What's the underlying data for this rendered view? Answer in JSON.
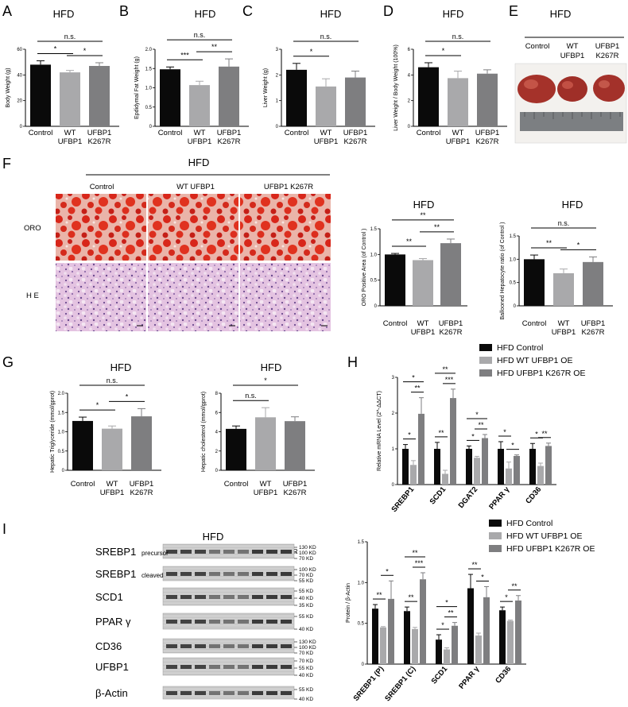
{
  "panel_labels": {
    "A": "A",
    "B": "B",
    "C": "C",
    "D": "D",
    "E": "E",
    "F": "F",
    "G": "G",
    "H": "H",
    "I": "I"
  },
  "condition_label": "HFD",
  "colors": {
    "control": "#0a0a0a",
    "wt": "#a9a9ab",
    "k267r": "#7e7e80",
    "oro": "#d72a1e",
    "oro_bg": "#e9b6ae",
    "he": "#d6a2cf",
    "he_dark": "#7d5a9a"
  },
  "groups": [
    "Control",
    "WT\nUFBP1",
    "UFBP1\nK267R"
  ],
  "legend": [
    "HFD  Control",
    "HFD  WT UFBP1 OE",
    "HFD  UFBP1 K267R OE"
  ],
  "panel_E": {
    "labels": [
      "Control",
      "WT\nUFBP1",
      "UFBP1\nK267R"
    ]
  },
  "panel_F_images": {
    "columns": [
      "Control",
      "WT   UFBP1",
      "UFBP1   K267R"
    ],
    "rows": [
      "ORO",
      "H E"
    ]
  },
  "panel_I_blot": {
    "groups": [
      "Control",
      "WT UFBP1",
      "UFBP1 K267R"
    ],
    "rows": [
      {
        "name": "SREBP1",
        "sub": "precursor",
        "mw": [
          "130 KD",
          "100 KD",
          "70 KD"
        ]
      },
      {
        "name": "SREBP1",
        "sub": "cleaved",
        "mw": [
          "100 KD",
          "70 KD",
          "55 KD"
        ]
      },
      {
        "name": "SCD1",
        "sub": "",
        "mw": [
          "55 KD",
          "40 KD",
          "35 KD"
        ]
      },
      {
        "name": "PPAR γ",
        "sub": "",
        "mw": [
          "55 KD",
          "40 KD"
        ]
      },
      {
        "name": "CD36",
        "sub": "",
        "mw": [
          "130 KD",
          "100 KD",
          "70 KD"
        ]
      },
      {
        "name": "UFBP1",
        "sub": "",
        "mw": [
          "70 KD",
          "55 KD",
          "40 KD"
        ]
      },
      {
        "name": "β-Actin",
        "sub": "",
        "mw": [
          "55 KD",
          "40 KD"
        ]
      }
    ]
  },
  "chart_data": [
    {
      "id": "A",
      "type": "bar",
      "title": "HFD",
      "ylabel": "Body Weight (g)",
      "ylim": [
        0,
        60
      ],
      "yticks": [
        0,
        20,
        40,
        60
      ],
      "categories": [
        "Control",
        "WT UFBP1",
        "UFBP1 K267R"
      ],
      "values": [
        48,
        42,
        47
      ],
      "errors": [
        3,
        1.5,
        2.5
      ],
      "significance": [
        {
          "from": 0,
          "to": 1,
          "label": "*"
        },
        {
          "from": 1,
          "to": 2,
          "label": "*"
        },
        {
          "from": 0,
          "to": 2,
          "label": "n.s."
        }
      ]
    },
    {
      "id": "B",
      "type": "bar",
      "title": "HFD",
      "ylabel": "Epdidymal Fat Weight (g)",
      "ylim": [
        0,
        2.0
      ],
      "yticks": [
        0,
        0.5,
        1.0,
        1.5,
        2.0
      ],
      "categories": [
        "Control",
        "WT UFBP1",
        "UFBP1 K267R"
      ],
      "values": [
        1.48,
        1.07,
        1.55
      ],
      "errors": [
        0.06,
        0.1,
        0.2
      ],
      "significance": [
        {
          "from": 0,
          "to": 1,
          "label": "***"
        },
        {
          "from": 1,
          "to": 2,
          "label": "**"
        },
        {
          "from": 0,
          "to": 2,
          "label": "n.s."
        }
      ]
    },
    {
      "id": "C",
      "type": "bar",
      "title": "HFD",
      "ylabel": "Liver Weight (g)",
      "ylim": [
        0,
        3
      ],
      "yticks": [
        0,
        1,
        2,
        3
      ],
      "categories": [
        "Control",
        "WT UFBP1",
        "UFBP1 K267R"
      ],
      "values": [
        2.2,
        1.55,
        1.9
      ],
      "errors": [
        0.25,
        0.3,
        0.25
      ],
      "significance": [
        {
          "from": 0,
          "to": 1,
          "label": "*"
        },
        {
          "from": 0,
          "to": 2,
          "label": "n.s."
        }
      ]
    },
    {
      "id": "D",
      "type": "bar",
      "title": "HFD",
      "ylabel": "Liver Weight / Body Weight (100%)",
      "ylim": [
        0,
        6
      ],
      "yticks": [
        0,
        2,
        4,
        6
      ],
      "categories": [
        "Control",
        "WT UFBP1",
        "UFBP1 K267R"
      ],
      "values": [
        4.6,
        3.75,
        4.1
      ],
      "errors": [
        0.35,
        0.55,
        0.3
      ],
      "significance": [
        {
          "from": 0,
          "to": 1,
          "label": "*"
        },
        {
          "from": 0,
          "to": 2,
          "label": "n.s."
        }
      ]
    },
    {
      "id": "F1",
      "type": "bar",
      "title": "HFD",
      "ylabel": "ORO Positive Area (of Control )",
      "ylim": [
        0,
        1.5
      ],
      "yticks": [
        0,
        0.5,
        1.0,
        1.5
      ],
      "categories": [
        "Control",
        "WT UFBP1",
        "UFBP1 K267R"
      ],
      "values": [
        1.0,
        0.89,
        1.22
      ],
      "errors": [
        0.02,
        0.03,
        0.08
      ],
      "significance": [
        {
          "from": 0,
          "to": 1,
          "label": "**"
        },
        {
          "from": 1,
          "to": 2,
          "label": "**"
        },
        {
          "from": 0,
          "to": 2,
          "label": "**"
        }
      ]
    },
    {
      "id": "F2",
      "type": "bar",
      "title": "HFD",
      "ylabel": "Ballooned Hepatocyte ratio (of Control )",
      "ylim": [
        0,
        1.5
      ],
      "yticks": [
        0,
        0.5,
        1.0,
        1.5
      ],
      "categories": [
        "Control",
        "WT UFBP1",
        "UFBP1 K267R"
      ],
      "values": [
        1.0,
        0.7,
        0.94
      ],
      "errors": [
        0.09,
        0.09,
        0.11
      ],
      "significance": [
        {
          "from": 0,
          "to": 1,
          "label": "**"
        },
        {
          "from": 1,
          "to": 2,
          "label": "*"
        },
        {
          "from": 0,
          "to": 2,
          "label": "n.s."
        }
      ]
    },
    {
      "id": "G1",
      "type": "bar",
      "title": "HFD",
      "ylabel": "Hepatic Triglyceride (mmol/gprot)",
      "ylim": [
        0,
        2.0
      ],
      "yticks": [
        0,
        0.5,
        1.0,
        1.5,
        2.0
      ],
      "categories": [
        "Control",
        "WT UFBP1",
        "UFBP1 K267R"
      ],
      "values": [
        1.28,
        1.08,
        1.4
      ],
      "errors": [
        0.1,
        0.07,
        0.2
      ],
      "significance": [
        {
          "from": 0,
          "to": 1,
          "label": "*"
        },
        {
          "from": 1,
          "to": 2,
          "label": "*"
        },
        {
          "from": 0,
          "to": 2,
          "label": "n.s."
        }
      ]
    },
    {
      "id": "G2",
      "type": "bar",
      "title": "HFD",
      "ylabel": "Hepatic cholesterol (mmol/gprot)",
      "ylim": [
        0,
        8
      ],
      "yticks": [
        0,
        2,
        4,
        6,
        8
      ],
      "categories": [
        "Control",
        "WT UFBP1",
        "UFBP1 K267R"
      ],
      "values": [
        4.3,
        5.5,
        5.1
      ],
      "errors": [
        0.3,
        1.0,
        0.45
      ],
      "significance": [
        {
          "from": 0,
          "to": 1,
          "label": "n.s."
        },
        {
          "from": 0,
          "to": 2,
          "label": "*"
        }
      ]
    },
    {
      "id": "H",
      "type": "bar",
      "title": "",
      "ylabel": "Relative mRNA Level (2^-ΔΔCT)",
      "ylim": [
        0,
        3
      ],
      "yticks": [
        0,
        1,
        2,
        3
      ],
      "categories": [
        "SREBP1",
        "SCD1",
        "DGAT2",
        "PPAR γ",
        "CD36"
      ],
      "series": [
        {
          "name": "HFD  Control",
          "values": [
            1.0,
            1.0,
            1.0,
            1.0,
            1.0
          ],
          "errors": [
            0.12,
            0.18,
            0.08,
            0.2,
            0.15
          ]
        },
        {
          "name": "HFD  WT UFBP1 OE",
          "values": [
            0.55,
            0.3,
            0.75,
            0.45,
            0.52
          ],
          "errors": [
            0.12,
            0.1,
            0.04,
            0.18,
            0.08
          ]
        },
        {
          "name": "HFD  UFBP1 K267R OE",
          "values": [
            1.98,
            2.42,
            1.3,
            0.8,
            1.08
          ],
          "errors": [
            0.45,
            0.25,
            0.1,
            0.03,
            0.08
          ]
        }
      ],
      "significance": [
        {
          "cat": 0,
          "pairs": [
            {
              "from": 0,
              "to": 1,
              "label": "*"
            },
            {
              "from": 1,
              "to": 2,
              "label": "**"
            },
            {
              "from": 0,
              "to": 2,
              "label": "*"
            }
          ]
        },
        {
          "cat": 1,
          "pairs": [
            {
              "from": 0,
              "to": 1,
              "label": "**"
            },
            {
              "from": 1,
              "to": 2,
              "label": "***"
            },
            {
              "from": 0,
              "to": 2,
              "label": "**"
            }
          ]
        },
        {
          "cat": 2,
          "pairs": [
            {
              "from": 0,
              "to": 1,
              "label": "*"
            },
            {
              "from": 1,
              "to": 2,
              "label": "**"
            },
            {
              "from": 0,
              "to": 2,
              "label": "*"
            }
          ]
        },
        {
          "cat": 3,
          "pairs": [
            {
              "from": 0,
              "to": 1,
              "label": "*"
            },
            {
              "from": 1,
              "to": 2,
              "label": "*"
            }
          ]
        },
        {
          "cat": 4,
          "pairs": [
            {
              "from": 0,
              "to": 1,
              "label": "*"
            },
            {
              "from": 1,
              "to": 2,
              "label": "**"
            }
          ]
        }
      ]
    },
    {
      "id": "I",
      "type": "bar",
      "title": "",
      "ylabel": "Protein / β-Actin",
      "ylim": [
        0,
        1.5
      ],
      "yticks": [
        0,
        0.5,
        1.0,
        1.5
      ],
      "categories": [
        "SREBP1 (P)",
        "SREBP1 (C)",
        "SCD1",
        "PPAR γ",
        "CD36"
      ],
      "series": [
        {
          "name": "HFD  Control",
          "values": [
            0.68,
            0.65,
            0.3,
            0.93,
            0.66
          ],
          "errors": [
            0.05,
            0.05,
            0.06,
            0.17,
            0.04
          ]
        },
        {
          "name": "HFD  WT UFBP1 OE",
          "values": [
            0.45,
            0.43,
            0.18,
            0.35,
            0.53
          ],
          "errors": [
            0.01,
            0.02,
            0.02,
            0.03,
            0.01
          ]
        },
        {
          "name": "HFD  UFBP1 K267R OE",
          "values": [
            0.8,
            1.04,
            0.47,
            0.82,
            0.78
          ],
          "errors": [
            0.22,
            0.08,
            0.04,
            0.13,
            0.06
          ]
        }
      ],
      "significance": [
        {
          "cat": 0,
          "pairs": [
            {
              "from": 0,
              "to": 1,
              "label": "**"
            },
            {
              "from": 1,
              "to": 2,
              "label": "*"
            }
          ]
        },
        {
          "cat": 1,
          "pairs": [
            {
              "from": 0,
              "to": 1,
              "label": "**"
            },
            {
              "from": 1,
              "to": 2,
              "label": "***"
            },
            {
              "from": 0,
              "to": 2,
              "label": "**"
            }
          ]
        },
        {
          "cat": 2,
          "pairs": [
            {
              "from": 0,
              "to": 1,
              "label": "*"
            },
            {
              "from": 1,
              "to": 2,
              "label": "**"
            },
            {
              "from": 0,
              "to": 2,
              "label": "*"
            }
          ]
        },
        {
          "cat": 3,
          "pairs": [
            {
              "from": 0,
              "to": 1,
              "label": "**"
            },
            {
              "from": 1,
              "to": 2,
              "label": "*"
            }
          ]
        },
        {
          "cat": 4,
          "pairs": [
            {
              "from": 0,
              "to": 1,
              "label": "*"
            },
            {
              "from": 1,
              "to": 2,
              "label": "**"
            }
          ]
        }
      ]
    }
  ]
}
